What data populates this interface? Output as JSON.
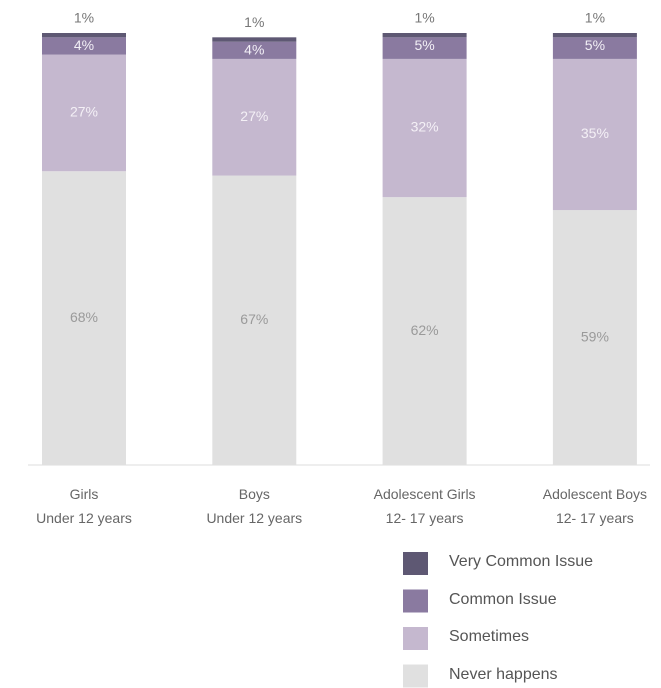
{
  "chart_data": {
    "type": "stacked_bar",
    "categories": [
      "Girls\nUnder 12 years",
      "Boys\nUnder 12 years",
      "Adolescent Girls\n12- 17 years",
      "Adolescent Boys\n12- 17 years"
    ],
    "series": [
      {
        "name": "Never happens",
        "color": "#e0e0e0",
        "label_color": "#9a9a9a",
        "values": [
          68,
          67,
          62,
          59
        ],
        "value_labels": [
          "68%",
          "67%",
          "62%",
          "59%"
        ]
      },
      {
        "name": "Sometimes",
        "color": "#c5b8cf",
        "label_color": "#f4f0f6",
        "values": [
          27,
          27,
          32,
          35
        ],
        "value_labels": [
          "27%",
          "27%",
          "32%",
          "35%"
        ]
      },
      {
        "name": "Common Issue",
        "color": "#8a7aa0",
        "label_color": "#f2eff6",
        "values": [
          4,
          4,
          5,
          5
        ],
        "value_labels": [
          "4%",
          "4%",
          "5%",
          "5%"
        ]
      },
      {
        "name": "Very Common Issue",
        "color": "#5e5873",
        "label_color": "#777777",
        "values": [
          1,
          1,
          1,
          1
        ],
        "value_labels": [
          "1%",
          "1%",
          "1%",
          "1%"
        ]
      }
    ],
    "ylim": [
      0,
      100
    ]
  }
}
